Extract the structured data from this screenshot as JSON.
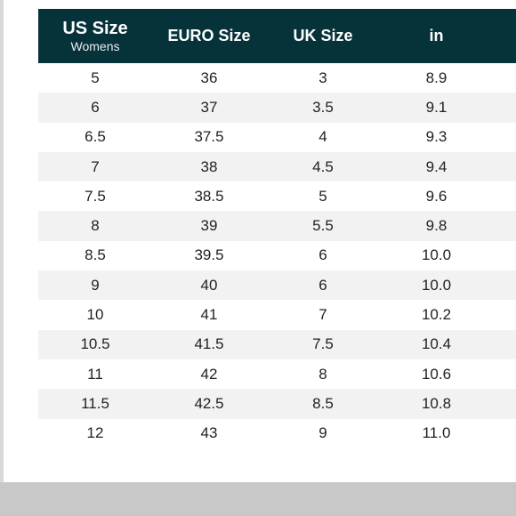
{
  "table": {
    "headers": [
      {
        "label": "US Size",
        "sublabel": "Womens"
      },
      {
        "label": "EURO Size"
      },
      {
        "label": "UK Size"
      },
      {
        "label": "in"
      }
    ],
    "rows": [
      [
        "5",
        "36",
        "3",
        "8.9"
      ],
      [
        "6",
        "37",
        "3.5",
        "9.1"
      ],
      [
        "6.5",
        "37.5",
        "4",
        "9.3"
      ],
      [
        "7",
        "38",
        "4.5",
        "9.4"
      ],
      [
        "7.5",
        "38.5",
        "5",
        "9.6"
      ],
      [
        "8",
        "39",
        "5.5",
        "9.8"
      ],
      [
        "8.5",
        "39.5",
        "6",
        "10.0"
      ],
      [
        "9",
        "40",
        "6",
        "10.0"
      ],
      [
        "10",
        "41",
        "7",
        "10.2"
      ],
      [
        "10.5",
        "41.5",
        "7.5",
        "10.4"
      ],
      [
        "11",
        "42",
        "8",
        "10.6"
      ],
      [
        "11.5",
        "42.5",
        "8.5",
        "10.8"
      ],
      [
        "12",
        "43",
        "9",
        "11.0"
      ]
    ],
    "colors": {
      "header_bg": "#06323a",
      "header_text": "#ffffff",
      "alt_row_bg": "#f2f2f2",
      "body_text": "#222222"
    }
  }
}
